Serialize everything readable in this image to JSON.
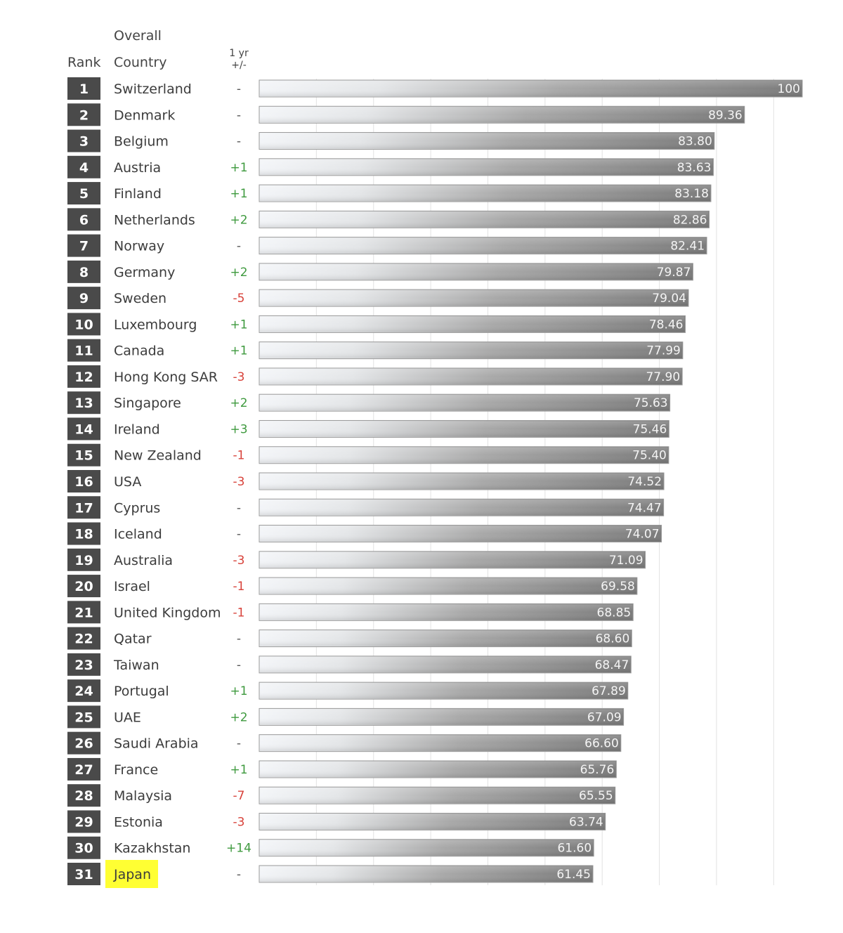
{
  "headers": {
    "rank": "Rank",
    "overall": "Overall",
    "country": "Country",
    "change_line1": "1 yr",
    "change_line2": "+/-"
  },
  "colors": {
    "up": "#3f9a3f",
    "down": "#d8423a",
    "neutral": "#555555",
    "rank_box": "#4a4a4a",
    "highlight": "#ffff33",
    "bar_dark": "#7d7d7d",
    "bar_light": "#f3f5f8",
    "grid": "#e2e2e2"
  },
  "chart_data": {
    "type": "bar",
    "orientation": "horizontal",
    "xlim": [
      0,
      100
    ],
    "grid": true,
    "highlighted": "Japan",
    "rows": [
      {
        "rank": "1",
        "country": "Switzerland",
        "change": "-",
        "value": 100,
        "label": "100"
      },
      {
        "rank": "2",
        "country": "Denmark",
        "change": "-",
        "value": 89.36,
        "label": "89.36"
      },
      {
        "rank": "3",
        "country": "Belgium",
        "change": "-",
        "value": 83.8,
        "label": "83.80"
      },
      {
        "rank": "4",
        "country": "Austria",
        "change": "+1",
        "value": 83.63,
        "label": "83.63"
      },
      {
        "rank": "5",
        "country": "Finland",
        "change": "+1",
        "value": 83.18,
        "label": "83.18"
      },
      {
        "rank": "6",
        "country": "Netherlands",
        "change": "+2",
        "value": 82.86,
        "label": "82.86"
      },
      {
        "rank": "7",
        "country": "Norway",
        "change": "-",
        "value": 82.41,
        "label": "82.41"
      },
      {
        "rank": "8",
        "country": "Germany",
        "change": "+2",
        "value": 79.87,
        "label": "79.87"
      },
      {
        "rank": "9",
        "country": "Sweden",
        "change": "-5",
        "value": 79.04,
        "label": "79.04"
      },
      {
        "rank": "10",
        "country": "Luxembourg",
        "change": "+1",
        "value": 78.46,
        "label": "78.46"
      },
      {
        "rank": "11",
        "country": "Canada",
        "change": "+1",
        "value": 77.99,
        "label": "77.99"
      },
      {
        "rank": "12",
        "country": "Hong Kong SAR",
        "change": "-3",
        "value": 77.9,
        "label": "77.90"
      },
      {
        "rank": "13",
        "country": "Singapore",
        "change": "+2",
        "value": 75.63,
        "label": "75.63"
      },
      {
        "rank": "14",
        "country": "Ireland",
        "change": "+3",
        "value": 75.46,
        "label": "75.46"
      },
      {
        "rank": "15",
        "country": "New Zealand",
        "change": "-1",
        "value": 75.4,
        "label": "75.40"
      },
      {
        "rank": "16",
        "country": "USA",
        "change": "-3",
        "value": 74.52,
        "label": "74.52"
      },
      {
        "rank": "17",
        "country": "Cyprus",
        "change": "-",
        "value": 74.47,
        "label": "74.47"
      },
      {
        "rank": "18",
        "country": "Iceland",
        "change": "-",
        "value": 74.07,
        "label": "74.07"
      },
      {
        "rank": "19",
        "country": "Australia",
        "change": "-3",
        "value": 71.09,
        "label": "71.09"
      },
      {
        "rank": "20",
        "country": "Israel",
        "change": "-1",
        "value": 69.58,
        "label": "69.58"
      },
      {
        "rank": "21",
        "country": "United Kingdom",
        "change": "-1",
        "value": 68.85,
        "label": "68.85"
      },
      {
        "rank": "22",
        "country": "Qatar",
        "change": "-",
        "value": 68.6,
        "label": "68.60"
      },
      {
        "rank": "23",
        "country": "Taiwan",
        "change": "-",
        "value": 68.47,
        "label": "68.47"
      },
      {
        "rank": "24",
        "country": "Portugal",
        "change": "+1",
        "value": 67.89,
        "label": "67.89"
      },
      {
        "rank": "25",
        "country": "UAE",
        "change": "+2",
        "value": 67.09,
        "label": "67.09"
      },
      {
        "rank": "26",
        "country": "Saudi Arabia",
        "change": "-",
        "value": 66.6,
        "label": "66.60"
      },
      {
        "rank": "27",
        "country": "France",
        "change": "+1",
        "value": 65.76,
        "label": "65.76"
      },
      {
        "rank": "28",
        "country": "Malaysia",
        "change": "-7",
        "value": 65.55,
        "label": "65.55"
      },
      {
        "rank": "29",
        "country": "Estonia",
        "change": "-3",
        "value": 63.74,
        "label": "63.74"
      },
      {
        "rank": "30",
        "country": "Kazakhstan",
        "change": "+14",
        "value": 61.6,
        "label": "61.60"
      },
      {
        "rank": "31",
        "country": "Japan",
        "change": "-",
        "value": 61.45,
        "label": "61.45"
      }
    ]
  }
}
